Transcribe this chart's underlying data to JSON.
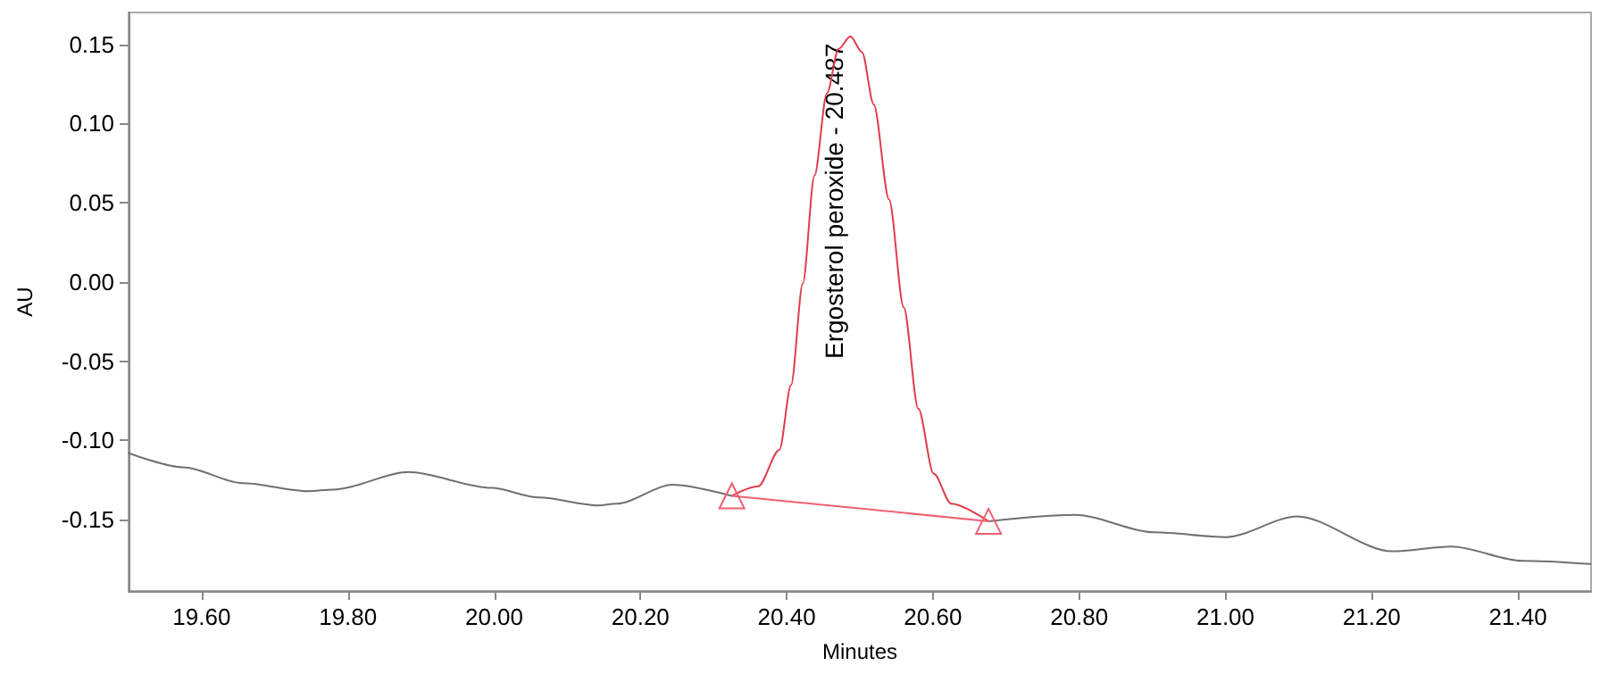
{
  "chart_data": {
    "type": "line",
    "xlabel": "Minutes",
    "ylabel": "AU",
    "xlim": [
      19.5,
      21.5
    ],
    "xticks": [
      {
        "value": 19.6,
        "label": "19.60"
      },
      {
        "value": 19.8,
        "label": "19.80"
      },
      {
        "value": 20.0,
        "label": "20.00"
      },
      {
        "value": 20.2,
        "label": "20.20"
      },
      {
        "value": 20.4,
        "label": "20.40"
      },
      {
        "value": 20.6,
        "label": "20.60"
      },
      {
        "value": 20.8,
        "label": "20.80"
      },
      {
        "value": 21.0,
        "label": "21.00"
      },
      {
        "value": 21.2,
        "label": "21.20"
      },
      {
        "value": 21.4,
        "label": "21.40"
      }
    ],
    "ylim": [
      -0.195,
      0.17
    ],
    "yticks": [
      {
        "value": -0.15,
        "label": "-0.15"
      },
      {
        "value": -0.1,
        "label": "-0.10"
      },
      {
        "value": -0.05,
        "label": "-0.05"
      },
      {
        "value": 0,
        "label": "0.00"
      },
      {
        "value": 0.05,
        "label": "0.05"
      },
      {
        "value": 0.1,
        "label": "0.10"
      },
      {
        "value": 0.15,
        "label": "0.15"
      }
    ],
    "grid": false,
    "marker": "none",
    "line_style": "solid",
    "series": [
      {
        "color": "#707070",
        "x": [
          19.5,
          19.575,
          19.656,
          19.745,
          19.78,
          19.883,
          19.996,
          20.061,
          20.142,
          20.167,
          20.244,
          20.325
        ],
        "values": [
          -0.108,
          -0.117,
          -0.127,
          -0.132,
          -0.131,
          -0.12,
          -0.13,
          -0.136,
          -0.141,
          -0.14,
          -0.128,
          -0.135
        ]
      },
      {
        "color": "#707070",
        "x": [
          20.676,
          20.794,
          20.903,
          21.001,
          21.098,
          21.228,
          21.309,
          21.406,
          21.499
        ],
        "values": [
          -0.151,
          -0.147,
          -0.158,
          -0.161,
          -0.148,
          -0.17,
          -0.167,
          -0.176,
          -0.178
        ]
      },
      {
        "color": "#e03c4a",
        "x": [
          20.325,
          20.361,
          20.39,
          20.406,
          20.422,
          20.438,
          20.455,
          20.471,
          20.487,
          20.503,
          20.519,
          20.54,
          20.56,
          20.58,
          20.601,
          20.625,
          20.676
        ],
        "values": [
          -0.135,
          -0.129,
          -0.106,
          -0.065,
          -0.001,
          0.067,
          0.119,
          0.147,
          0.155,
          0.145,
          0.112,
          0.052,
          -0.016,
          -0.08,
          -0.121,
          -0.14,
          -0.151
        ]
      },
      {
        "color": "#f06070",
        "marker": "triangle",
        "x": [
          20.325,
          20.676
        ],
        "values": [
          -0.135,
          -0.151
        ]
      }
    ],
    "annotations": [
      {
        "text": "Ergosterol peroxide - 20.487",
        "x": 20.487,
        "y": 0.155
      }
    ]
  }
}
